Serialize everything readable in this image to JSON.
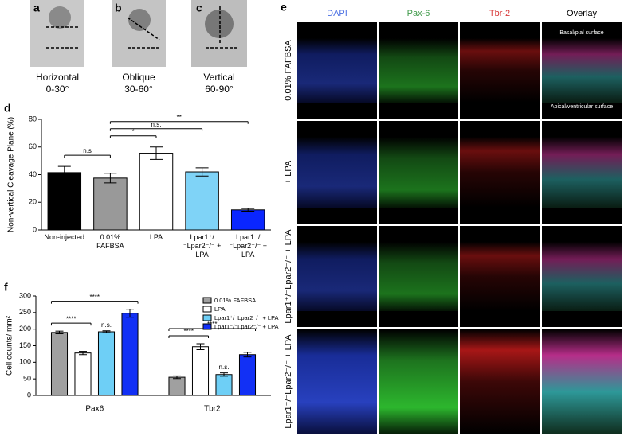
{
  "orientation_panels": [
    {
      "letter": "a",
      "name": "Horizontal",
      "range": "0-30°"
    },
    {
      "letter": "b",
      "name": "Oblique",
      "range": "30-60°"
    },
    {
      "letter": "c",
      "name": "Vertical",
      "range": "60-90°"
    }
  ],
  "microscopy": {
    "letter": "e",
    "columns": [
      {
        "name": "DAPI",
        "color": "#4a6fe3"
      },
      {
        "name": "Pax-6",
        "color": "#3f9a4a"
      },
      {
        "name": "Tbr-2",
        "color": "#d83a3a"
      },
      {
        "name": "Overlay",
        "color": "#000000"
      }
    ],
    "rows": [
      "0.01% FAFBSA",
      "+ LPA",
      "Lpar1⁺/⁻Lpar2⁻/⁻ + LPA",
      "Lpar1⁻/⁻Lpar2⁻/⁻ + LPA"
    ],
    "surface_labels": [
      "Basal/pial surface",
      "Apical/ventricular surface"
    ]
  },
  "chart_data": [
    {
      "type": "bar",
      "panel": "d",
      "y_label": "Non-vertical Cleavage Plane (%)",
      "categories": [
        "Non-injected",
        "0.01% FAFBSA",
        "LPA",
        "Lpar1⁺/⁻Lpar2⁻/⁻ + LPA",
        "Lpar1⁻/⁻Lpar2⁻/⁻ + LPA"
      ],
      "values": [
        41.5,
        37.5,
        55.5,
        42,
        14.5
      ],
      "errors": [
        4.5,
        3.5,
        4.5,
        3,
        1
      ],
      "colors": [
        "#000000",
        "#999999",
        "#ffffff",
        "#7fd3f7",
        "#0a26ff"
      ],
      "ylim": [
        0,
        80
      ],
      "yticks": [
        0,
        20,
        40,
        60,
        80
      ],
      "annotations": [
        {
          "text": "n.s",
          "from": 0,
          "to": 1
        },
        {
          "text": "*",
          "from": 1,
          "to": 2
        },
        {
          "text": "n.s.",
          "from": 1,
          "to": 3
        },
        {
          "text": "**",
          "from": 1,
          "to": 4
        }
      ]
    },
    {
      "type": "grouped_bar",
      "panel": "f",
      "y_label": "Cell counts/ mm²",
      "categories": [
        "Pax6",
        "Tbr2"
      ],
      "series": [
        {
          "name": "0.01% FAFBSA",
          "color": "#a0a0a0",
          "values": [
            190,
            55
          ],
          "errors": [
            4,
            4
          ]
        },
        {
          "name": "LPA",
          "color": "#ffffff",
          "values": [
            128,
            147
          ],
          "errors": [
            5,
            9
          ]
        },
        {
          "name": "Lpar1⁺/⁻Lpar2⁻/⁻ + LPA",
          "color": "#6ecff6",
          "values": [
            192,
            63
          ],
          "errors": [
            3,
            5
          ]
        },
        {
          "name": "Lpar1⁻/⁻Lpar2⁻/⁻ + LPA",
          "color": "#1230f5",
          "values": [
            248,
            123
          ],
          "errors": [
            12,
            7
          ]
        }
      ],
      "ylim": [
        0,
        300
      ],
      "yticks": [
        0,
        50,
        100,
        150,
        200,
        250,
        300
      ],
      "legend": "top-right",
      "annotations": [
        {
          "text": "****",
          "category": 0,
          "from": 0,
          "to": 1
        },
        {
          "text": "****",
          "category": 0,
          "from": 0,
          "to": 3
        },
        {
          "text": "n.s.",
          "category": 0,
          "series": 2
        },
        {
          "text": "****",
          "category": 1,
          "from": 0,
          "to": 1
        },
        {
          "text": "****",
          "category": 1,
          "from": 0,
          "to": 3
        },
        {
          "text": "n.s.",
          "category": 1,
          "series": 2
        }
      ]
    }
  ]
}
